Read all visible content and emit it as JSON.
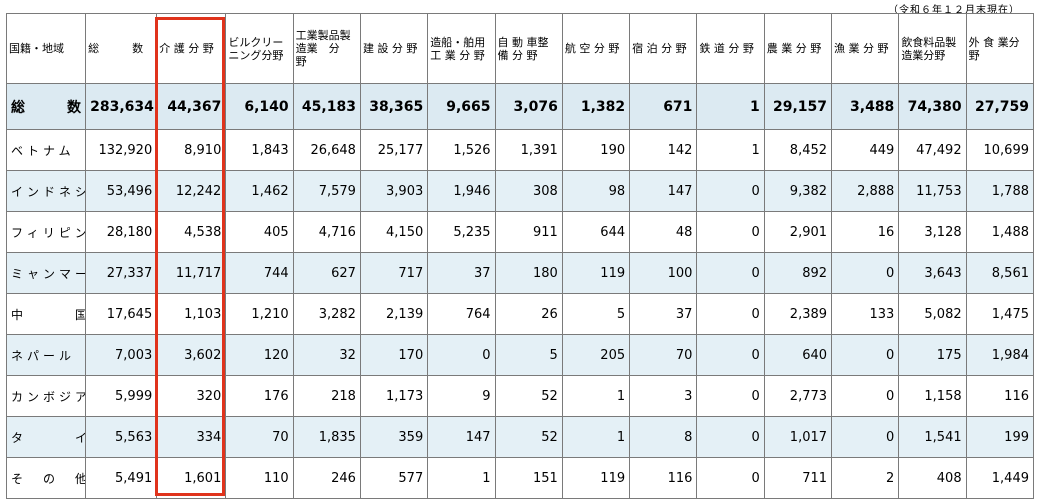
{
  "as_of_note": "（令和６年１２月末現在）",
  "headers": [
    "国籍・地域",
    "総　　　数",
    "介 護 分 野",
    "ビルクリーニング分野",
    "工業製品製造業　分　野",
    "建 設 分 野",
    "造船・舶用工 業 分 野",
    "自 動 車整 備 分 野",
    "航 空 分 野",
    "宿 泊 分 野",
    "鉄 道 分 野",
    "農 業 分 野",
    "漁 業 分 野",
    "飲食料品製造業分野",
    "外 食 業分　　野"
  ],
  "rows": [
    {
      "name": "総　数",
      "values": [
        "283,634",
        "44,367",
        "6,140",
        "45,183",
        "38,365",
        "9,665",
        "3,076",
        "1,382",
        "671",
        "1",
        "29,157",
        "3,488",
        "74,380",
        "27,759"
      ]
    },
    {
      "name": "ベトナム",
      "values": [
        "132,920",
        "8,910",
        "1,843",
        "26,648",
        "25,177",
        "1,526",
        "1,391",
        "190",
        "142",
        "1",
        "8,452",
        "449",
        "47,492",
        "10,699"
      ]
    },
    {
      "name": "インドネシア",
      "values": [
        "53,496",
        "12,242",
        "1,462",
        "7,579",
        "3,903",
        "1,946",
        "308",
        "98",
        "147",
        "0",
        "9,382",
        "2,888",
        "11,753",
        "1,788"
      ]
    },
    {
      "name": "フィリピン",
      "values": [
        "28,180",
        "4,538",
        "405",
        "4,716",
        "4,150",
        "5,235",
        "911",
        "644",
        "48",
        "0",
        "2,901",
        "16",
        "3,128",
        "1,488"
      ]
    },
    {
      "name": "ミャンマー",
      "values": [
        "27,337",
        "11,717",
        "744",
        "627",
        "717",
        "37",
        "180",
        "119",
        "100",
        "0",
        "892",
        "0",
        "3,643",
        "8,561"
      ]
    },
    {
      "name": "中　　　国",
      "values": [
        "17,645",
        "1,103",
        "1,210",
        "3,282",
        "2,139",
        "764",
        "26",
        "5",
        "37",
        "0",
        "2,389",
        "133",
        "5,082",
        "1,475"
      ]
    },
    {
      "name": "ネパール",
      "values": [
        "7,003",
        "3,602",
        "120",
        "32",
        "170",
        "0",
        "5",
        "205",
        "70",
        "0",
        "640",
        "0",
        "175",
        "1,984"
      ]
    },
    {
      "name": "カンボジア",
      "values": [
        "5,999",
        "320",
        "176",
        "218",
        "1,173",
        "9",
        "52",
        "1",
        "3",
        "0",
        "2,773",
        "0",
        "1,158",
        "116"
      ]
    },
    {
      "name": "タ　　　イ",
      "values": [
        "5,563",
        "334",
        "70",
        "1,835",
        "359",
        "147",
        "52",
        "1",
        "8",
        "0",
        "1,017",
        "0",
        "1,541",
        "199"
      ]
    },
    {
      "name": "そ　の　他",
      "values": [
        "5,491",
        "1,601",
        "110",
        "246",
        "577",
        "1",
        "151",
        "119",
        "116",
        "0",
        "711",
        "2",
        "408",
        "1,449"
      ]
    }
  ]
}
